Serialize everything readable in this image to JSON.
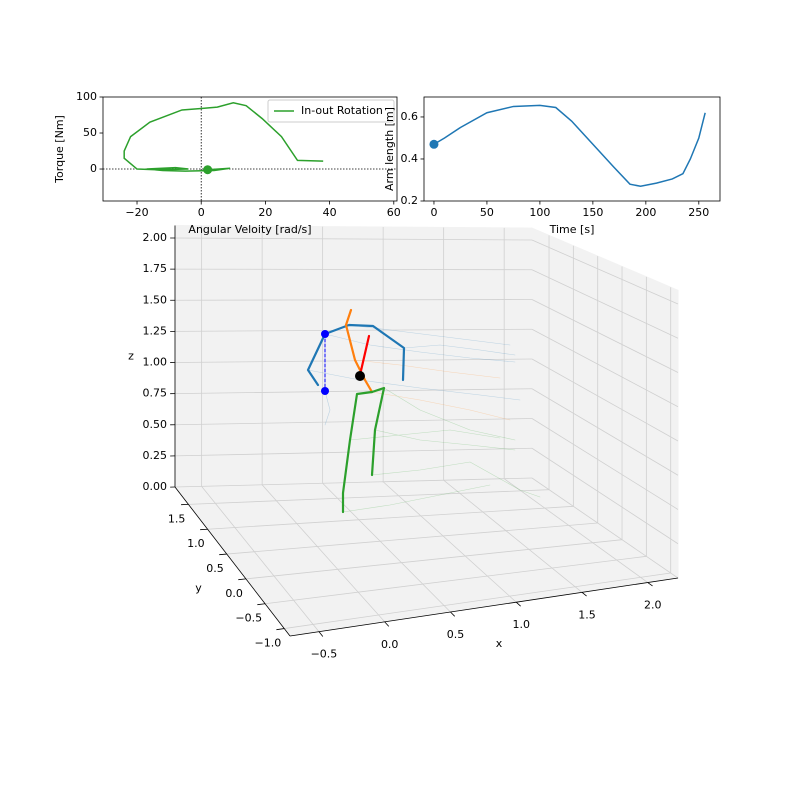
{
  "chart_data": [
    {
      "type": "line",
      "ylabel": "Torque [Nm]",
      "xlabel": "Angular Veloity [rad/s]",
      "x": [
        2,
        9,
        4,
        -5,
        -12,
        -17,
        -8,
        -4,
        -14,
        -20,
        -24,
        -24,
        -22,
        -16,
        -6,
        0,
        5,
        10,
        14,
        19,
        25,
        30,
        38
      ],
      "series": [
        {
          "name": "In-out Rotation",
          "color": "#2ca02c",
          "values": [
            -1,
            1,
            -2,
            -3,
            -2,
            0,
            2,
            0,
            -1,
            0,
            15,
            25,
            45,
            65,
            82,
            84,
            86,
            92,
            88,
            70,
            45,
            12,
            11
          ]
        }
      ],
      "xlim": [
        -30.6,
        61
      ],
      "ylim": [
        -44.4,
        100
      ],
      "xticks": [
        {
          "value": -20,
          "label": "−20"
        },
        0,
        20,
        40,
        60
      ],
      "yticks": [
        0,
        50,
        100
      ],
      "zero_lines": true,
      "legend": "upper right",
      "start_marker": true
    },
    {
      "type": "line",
      "ylabel": "Arm length [m]",
      "xlabel": "Time [s]",
      "x": [
        0,
        10,
        25,
        50,
        75,
        100,
        115,
        130,
        150,
        170,
        185,
        195,
        210,
        225,
        235,
        242,
        250,
        256
      ],
      "series": [
        {
          "color": "#1f77b4",
          "values": [
            0.47,
            0.5,
            0.55,
            0.62,
            0.65,
            0.655,
            0.645,
            0.58,
            0.47,
            0.36,
            0.28,
            0.27,
            0.285,
            0.305,
            0.33,
            0.4,
            0.5,
            0.62
          ]
        }
      ],
      "xlim": [
        -9.4,
        270
      ],
      "ylim": [
        0.2,
        0.695
      ],
      "xticks": [
        0,
        50,
        100,
        150,
        200,
        250
      ],
      "yticks": [
        0.2,
        0.4,
        0.6
      ],
      "start_marker": true
    },
    {
      "type": "axes3d",
      "xlabel": "x",
      "ylabel": "y",
      "zlabel": "z",
      "xlim": [
        -0.72,
        2.23
      ],
      "ylim": [
        -1.15,
        1.85
      ],
      "zlim": [
        0,
        2.1
      ],
      "xticks": [
        {
          "value": -0.5,
          "label": "−0.5"
        },
        {
          "value": 0,
          "label": "0.0"
        },
        {
          "value": 0.5,
          "label": "0.5"
        },
        {
          "value": 1,
          "label": "1.0"
        },
        {
          "value": 1.5,
          "label": "1.5"
        },
        {
          "value": 2,
          "label": "2.0"
        }
      ],
      "yticks": [
        {
          "value": -1,
          "label": "−1.0"
        },
        {
          "value": -0.5,
          "label": "−0.5"
        },
        {
          "value": 0,
          "label": "0.0"
        },
        {
          "value": 0.5,
          "label": "0.5"
        },
        {
          "value": 1,
          "label": "1.0"
        },
        {
          "value": 1.5,
          "label": "1.5"
        }
      ],
      "zticks": [
        {
          "value": 0,
          "label": "0.00"
        },
        {
          "value": 0.25,
          "label": "0.25"
        },
        {
          "value": 0.5,
          "label": "0.50"
        },
        {
          "value": 0.75,
          "label": "0.75"
        },
        {
          "value": 1,
          "label": "1.00"
        },
        {
          "value": 1.25,
          "label": "1.25"
        },
        {
          "value": 1.5,
          "label": "1.50"
        },
        {
          "value": 1.75,
          "label": "1.75"
        },
        {
          "value": 2,
          "label": "2.00"
        }
      ],
      "grid": true
    }
  ]
}
